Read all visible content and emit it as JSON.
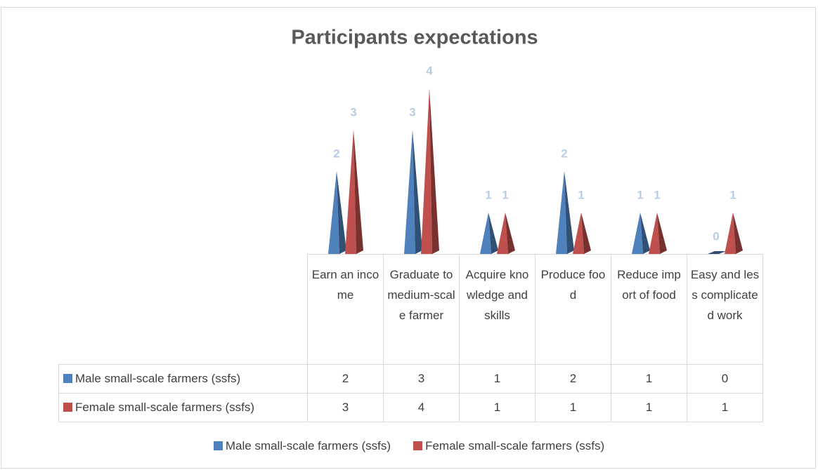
{
  "chart_data": {
    "type": "pyramid",
    "title": "Participants expectations",
    "categories": [
      "Earn an income",
      "Graduate to medium-scale farmer",
      "Acquire knowledge and skills",
      "Produce food",
      "Reduce import of food",
      "Easy and less complicated work"
    ],
    "series": [
      {
        "name": "Male small-scale farmers (ssfs)",
        "color": "#4f81bd",
        "values": [
          2,
          3,
          1,
          2,
          1,
          0
        ]
      },
      {
        "name": "Female small-scale farmers (ssfs)",
        "color": "#c0504d",
        "values": [
          3,
          4,
          1,
          1,
          1,
          1
        ]
      }
    ],
    "legend": "bottom"
  }
}
